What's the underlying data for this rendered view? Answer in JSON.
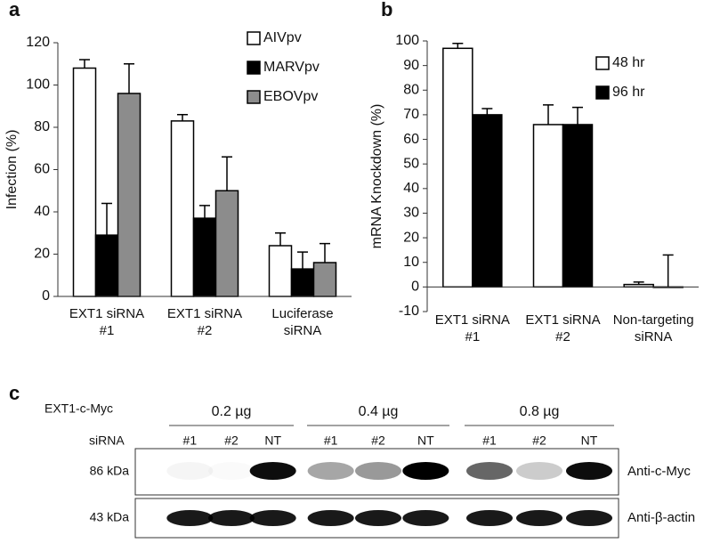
{
  "chart_data": [
    {
      "type": "bar",
      "panel_label": "a",
      "y_label": "Infection (%)",
      "categories": [
        "EXT1 siRNA\n#1",
        "EXT1 siRNA\n#2",
        "Luciferase\nsiRNA"
      ],
      "series": [
        {
          "name": "AIVpv",
          "color": "#ffffff",
          "values": [
            108,
            83,
            24
          ],
          "errors": [
            4,
            3,
            6
          ]
        },
        {
          "name": "MARVpv",
          "color": "#000000",
          "values": [
            29,
            37,
            13
          ],
          "errors": [
            15,
            6,
            8
          ]
        },
        {
          "name": "EBOVpv",
          "color": "#8c8c8c",
          "values": [
            96,
            50,
            16
          ],
          "errors": [
            14,
            16,
            9
          ]
        }
      ],
      "ylim": [
        0,
        120
      ],
      "yticks": [
        0,
        20,
        40,
        60,
        80,
        100,
        120
      ],
      "legend": "top-right"
    },
    {
      "type": "bar",
      "panel_label": "b",
      "y_label": "mRNA Knockdown (%)",
      "categories": [
        "EXT1 siRNA\n#1",
        "EXT1 siRNA\n#2",
        "Non-targeting\nsiRNA"
      ],
      "series": [
        {
          "name": "48 hr",
          "color": "#ffffff",
          "values": [
            97,
            66,
            1
          ],
          "errors": [
            2,
            8,
            1
          ]
        },
        {
          "name": "96 hr",
          "color": "#000000",
          "values": [
            70,
            66,
            0
          ],
          "errors": [
            2.5,
            7,
            13
          ]
        }
      ],
      "ylim": [
        -10,
        100
      ],
      "yticks": [
        -10,
        0,
        10,
        20,
        30,
        40,
        50,
        60,
        70,
        80,
        90,
        100
      ],
      "legend": "top-right"
    }
  ],
  "blot": {
    "panel_label": "c",
    "construct_label": "EXT1-c-Myc",
    "sirna_label": "siRNA",
    "doses": [
      {
        "label": "0.2 µg",
        "lanes": [
          "#1",
          "#2",
          "NT"
        ]
      },
      {
        "label": "0.4 µg",
        "lanes": [
          "#1",
          "#2",
          "NT"
        ]
      },
      {
        "label": "0.8 µg",
        "lanes": [
          "#1",
          "#2",
          "NT"
        ]
      }
    ],
    "blots": [
      {
        "size": "86 kDa",
        "antibody": "Anti-c-Myc"
      },
      {
        "size": "43 kDa",
        "antibody": "Anti-β-actin"
      }
    ]
  }
}
